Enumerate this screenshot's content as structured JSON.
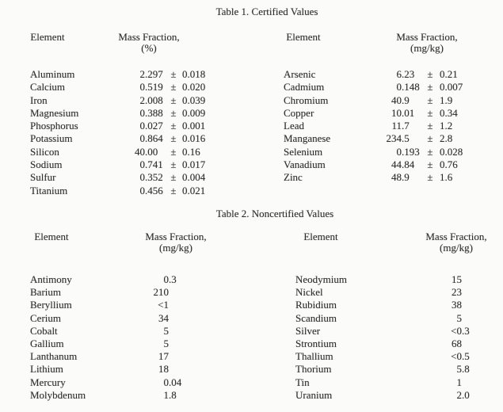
{
  "document": {
    "background": "#fbfbfa",
    "ink_color": "#2f2f2f"
  },
  "table1": {
    "title": "Table 1. Certified Values",
    "left": {
      "element_header": "Element",
      "value_header": "Mass Fraction,",
      "unit": "(%)",
      "rows": [
        {
          "element": "Aluminum",
          "value_int": "2",
          "value_frac": ".297",
          "pm": "±",
          "unc": "0.018"
        },
        {
          "element": "Calcium",
          "value_int": "0",
          "value_frac": ".519",
          "pm": "±",
          "unc": "0.020"
        },
        {
          "element": "Iron",
          "value_int": "2",
          "value_frac": ".008",
          "pm": "±",
          "unc": "0.039"
        },
        {
          "element": "Magnesium",
          "value_int": "0",
          "value_frac": ".388",
          "pm": "±",
          "unc": "0.009"
        },
        {
          "element": "Phosphorus",
          "value_int": "0",
          "value_frac": ".027",
          "pm": "±",
          "unc": "0.001"
        },
        {
          "element": "Potassium",
          "value_int": "0",
          "value_frac": ".864",
          "pm": "±",
          "unc": "0.016"
        },
        {
          "element": "Silicon",
          "value_int": "40",
          "value_frac": ".00",
          "pm": "±",
          "unc": "0.16"
        },
        {
          "element": "Sodium",
          "value_int": "0",
          "value_frac": ".741",
          "pm": "±",
          "unc": "0.017"
        },
        {
          "element": "Sulfur",
          "value_int": "0",
          "value_frac": ".352",
          "pm": "±",
          "unc": "0.004"
        },
        {
          "element": "Titanium",
          "value_int": "0",
          "value_frac": ".456",
          "pm": "±",
          "unc": "0.021"
        }
      ]
    },
    "right": {
      "element_header": "Element",
      "value_header": "Mass Fraction,",
      "unit": "(mg/kg)",
      "rows": [
        {
          "element": "Arsenic",
          "value_int": "6",
          "value_frac": ".23",
          "pm": "±",
          "unc": "0.21"
        },
        {
          "element": "Cadmium",
          "value_int": "0",
          "value_frac": ".148",
          "pm": "±",
          "unc": "0.007"
        },
        {
          "element": "Chromium",
          "value_int": "40",
          "value_frac": ".9",
          "pm": "±",
          "unc": "1.9"
        },
        {
          "element": "Copper",
          "value_int": "10",
          "value_frac": ".01",
          "pm": "±",
          "unc": "0.34"
        },
        {
          "element": "Lead",
          "value_int": "11",
          "value_frac": ".7",
          "pm": "±",
          "unc": "1.2"
        },
        {
          "element": "Manganese",
          "value_int": "234",
          "value_frac": ".5",
          "pm": "±",
          "unc": "2.8"
        },
        {
          "element": "Selenium",
          "value_int": "0",
          "value_frac": ".193",
          "pm": "±",
          "unc": "0.028"
        },
        {
          "element": "Vanadium",
          "value_int": "44",
          "value_frac": ".84",
          "pm": "±",
          "unc": "0.76"
        },
        {
          "element": "Zinc",
          "value_int": "48",
          "value_frac": ".9",
          "pm": "±",
          "unc": "1.6"
        }
      ]
    }
  },
  "table2": {
    "title": "Table 2. Noncertified Values",
    "left": {
      "element_header": "Element",
      "value_header": "Mass Fraction,",
      "unit": "(mg/kg)",
      "rows": [
        {
          "element": "Antimony",
          "value_int": "0",
          "value_frac": ".3"
        },
        {
          "element": "Barium",
          "value_int": "210",
          "value_frac": ""
        },
        {
          "element": "Beryllium",
          "value_int": "<1",
          "value_frac": ""
        },
        {
          "element": "Cerium",
          "value_int": "34",
          "value_frac": ""
        },
        {
          "element": "Cobalt",
          "value_int": "5",
          "value_frac": ""
        },
        {
          "element": "Gallium",
          "value_int": "5",
          "value_frac": ""
        },
        {
          "element": "Lanthanum",
          "value_int": "17",
          "value_frac": ""
        },
        {
          "element": "Lithium",
          "value_int": "18",
          "value_frac": ""
        },
        {
          "element": "Mercury",
          "value_int": "0",
          "value_frac": ".04"
        },
        {
          "element": "Molybdenum",
          "value_int": "1",
          "value_frac": ".8"
        }
      ]
    },
    "right": {
      "element_header": "Element",
      "value_header": "Mass Fraction,",
      "unit": "(mg/kg)",
      "rows": [
        {
          "element": "Neodymium",
          "value_int": "15",
          "value_frac": ""
        },
        {
          "element": "Nickel",
          "value_int": "23",
          "value_frac": ""
        },
        {
          "element": "Rubidium",
          "value_int": "38",
          "value_frac": ""
        },
        {
          "element": "Scandium",
          "value_int": "5",
          "value_frac": ""
        },
        {
          "element": "Silver",
          "value_int": "<0",
          "value_frac": ".3"
        },
        {
          "element": "Strontium",
          "value_int": "68",
          "value_frac": ""
        },
        {
          "element": "Thallium",
          "value_int": "<0",
          "value_frac": ".5"
        },
        {
          "element": "Thorium",
          "value_int": "5",
          "value_frac": ".8"
        },
        {
          "element": "Tin",
          "value_int": "1",
          "value_frac": ""
        },
        {
          "element": "Uranium",
          "value_int": "2",
          "value_frac": ".0"
        }
      ]
    }
  }
}
